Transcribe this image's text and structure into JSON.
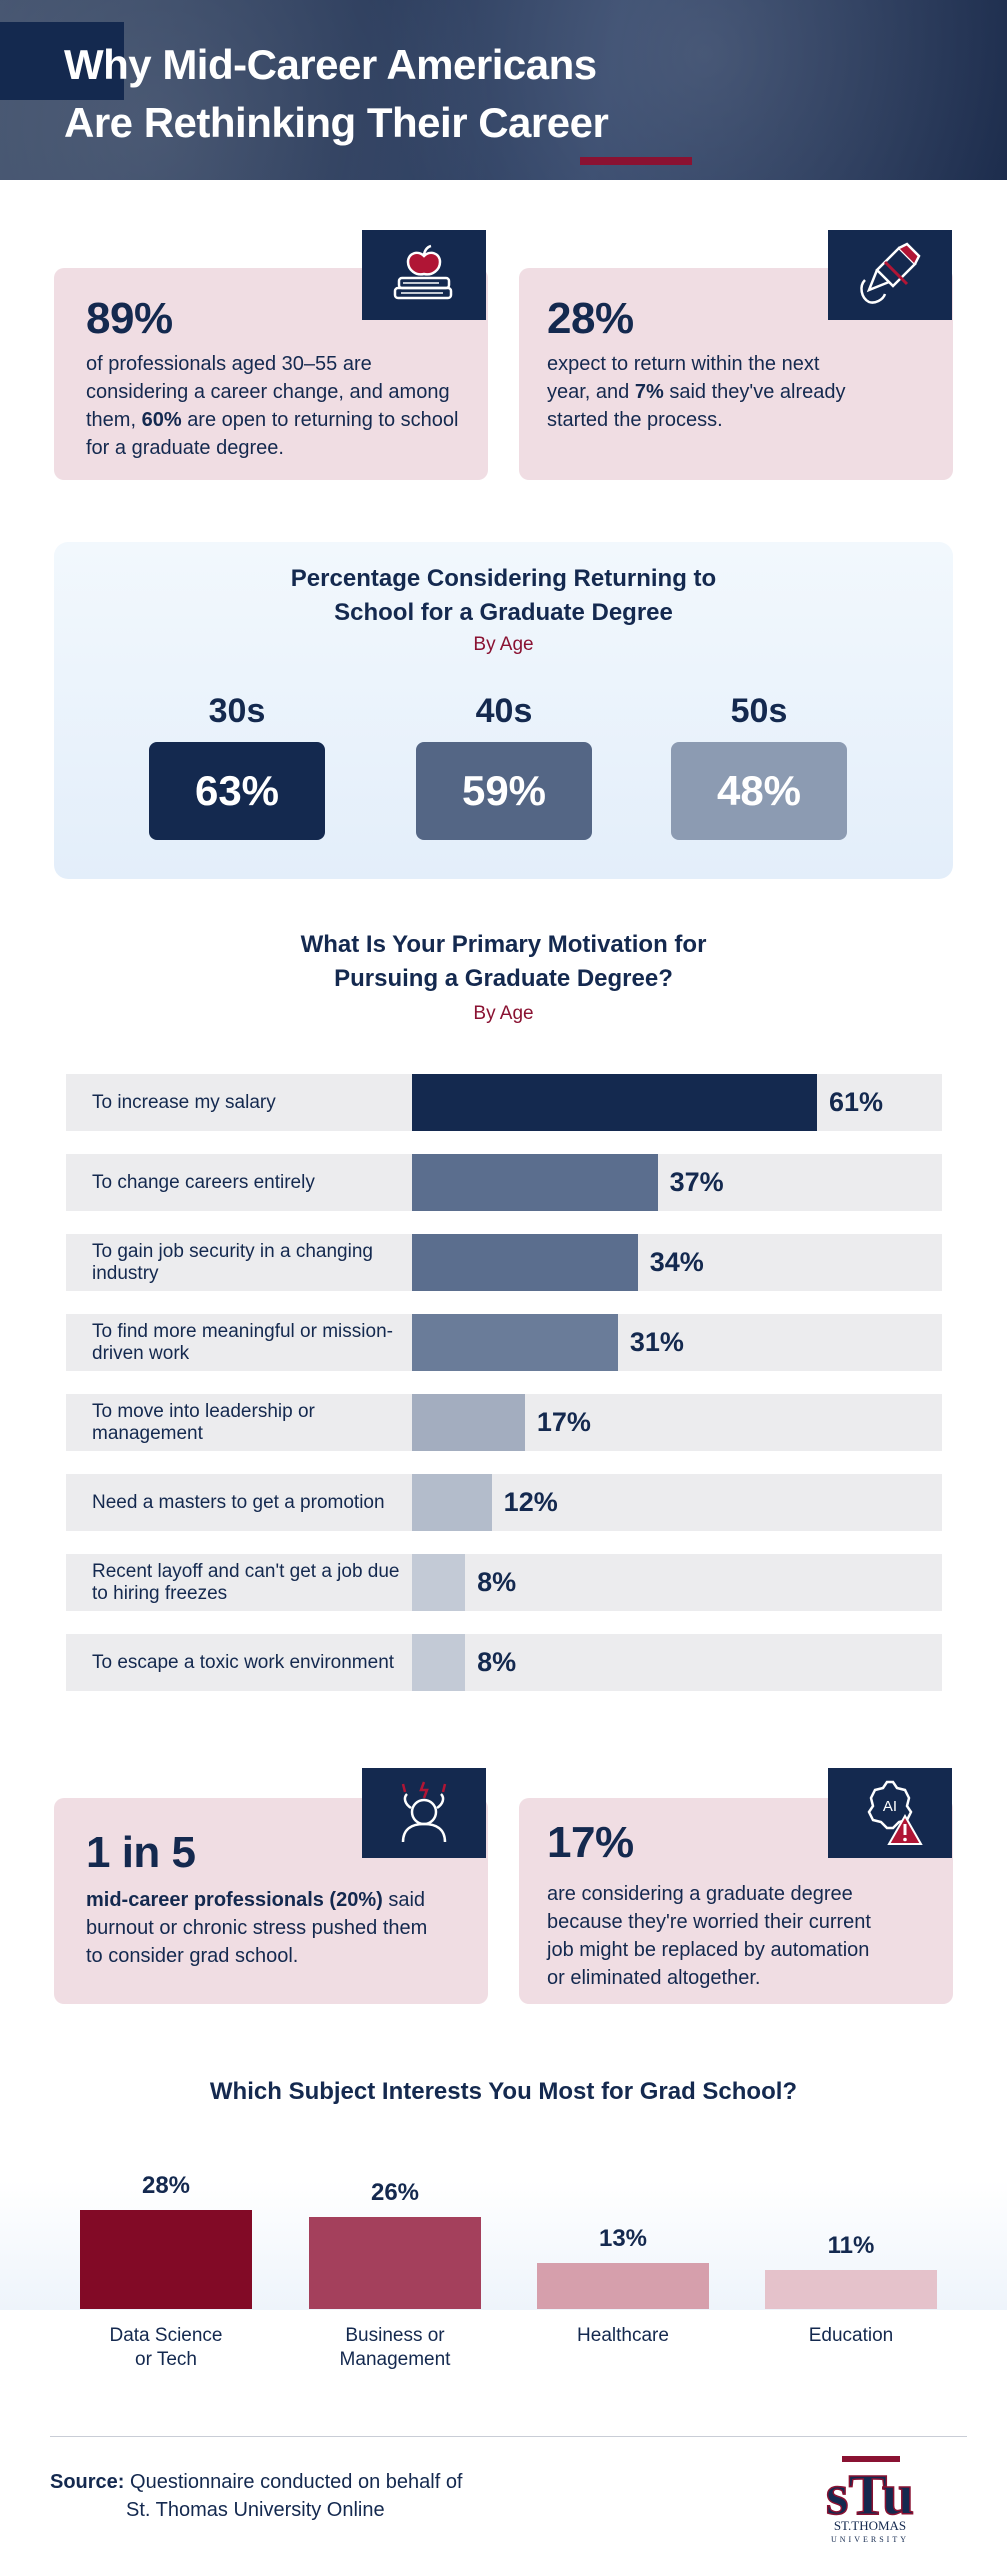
{
  "header": {
    "title_line1": "Why Mid-Career Americans",
    "title_line2": "Are Rethinking Their Career"
  },
  "stats_top": [
    {
      "big": "89%",
      "text_before": "of professionals aged 30–55 are considering a career change, and among them,",
      "bold": "60%",
      "text_after": "are open to returning to school for a graduate degree.",
      "icon": "books-apple-icon"
    },
    {
      "big": "28%",
      "text_before": "expect to return within the next year, and",
      "bold": "7%",
      "text_after": "said they've already started the process.",
      "icon": "hand-pencil-icon"
    }
  ],
  "stats_bottom": [
    {
      "big": "1 in 5",
      "bold": "mid-career professionals (20%)",
      "text_after": "said burnout or chronic stress pushed them to consider grad school.",
      "icon": "stressed-person-icon"
    },
    {
      "big": "17%",
      "text_after": "are considering a graduate degree because they're worried their current job might be replaced by automation or eliminated altogether.",
      "icon": "ai-warning-icon"
    }
  ],
  "chart_data": [
    {
      "type": "bar",
      "title": "Percentage Considering Returning to School for a Graduate Degree",
      "subtitle": "By Age",
      "categories": [
        "30s",
        "40s",
        "50s"
      ],
      "values": [
        63,
        59,
        48
      ],
      "value_labels": [
        "63%",
        "59%",
        "48%"
      ],
      "colors": [
        "#14294f",
        "#546685",
        "#8c9bb2"
      ]
    },
    {
      "type": "bar",
      "orientation": "horizontal",
      "title": "What Is Your Primary Motivation for Pursuing a Graduate Degree?",
      "subtitle": "By Age",
      "categories": [
        "To increase my salary",
        "To change careers entirely",
        "To gain job security in a changing industry",
        "To find more meaningful or mission-driven work",
        "To move into leadership or management",
        "Need a masters to get a promotion",
        "Recent layoff and can't get a job due to hiring freezes",
        "To escape a toxic work environment"
      ],
      "values": [
        61,
        37,
        34,
        31,
        17,
        12,
        8,
        8
      ],
      "value_labels": [
        "61%",
        "37%",
        "34%",
        "31%",
        "17%",
        "12%",
        "8%",
        "8%"
      ],
      "colors": [
        "#14294f",
        "#5b6e8e",
        "#5b6e8e",
        "#6a7c99",
        "#a3adbf",
        "#b3bccb",
        "#c3cad6",
        "#c3cad6"
      ]
    },
    {
      "type": "bar",
      "title": "Which Subject Interests You Most for Grad School?",
      "categories": [
        "Data Science or Tech",
        "Business or Management",
        "Healthcare",
        "Education"
      ],
      "category_lines": [
        [
          "Data Science",
          "or Tech"
        ],
        [
          "Business or",
          "Management"
        ],
        [
          "Healthcare"
        ],
        [
          "Education"
        ]
      ],
      "values": [
        28,
        26,
        13,
        11
      ],
      "value_labels": [
        "28%",
        "26%",
        "13%",
        "11%"
      ],
      "colors": [
        "#820a26",
        "#a4405c",
        "#d69fac",
        "#e5c2cb"
      ]
    }
  ],
  "footer": {
    "source_label": "Source:",
    "source_line1": "Questionnaire conducted on behalf of",
    "source_line2": "St. Thomas University Online",
    "logo_letters": "sTu",
    "logo_line1": "ST.THOMAS",
    "logo_line2": "UNIVERSITY"
  }
}
